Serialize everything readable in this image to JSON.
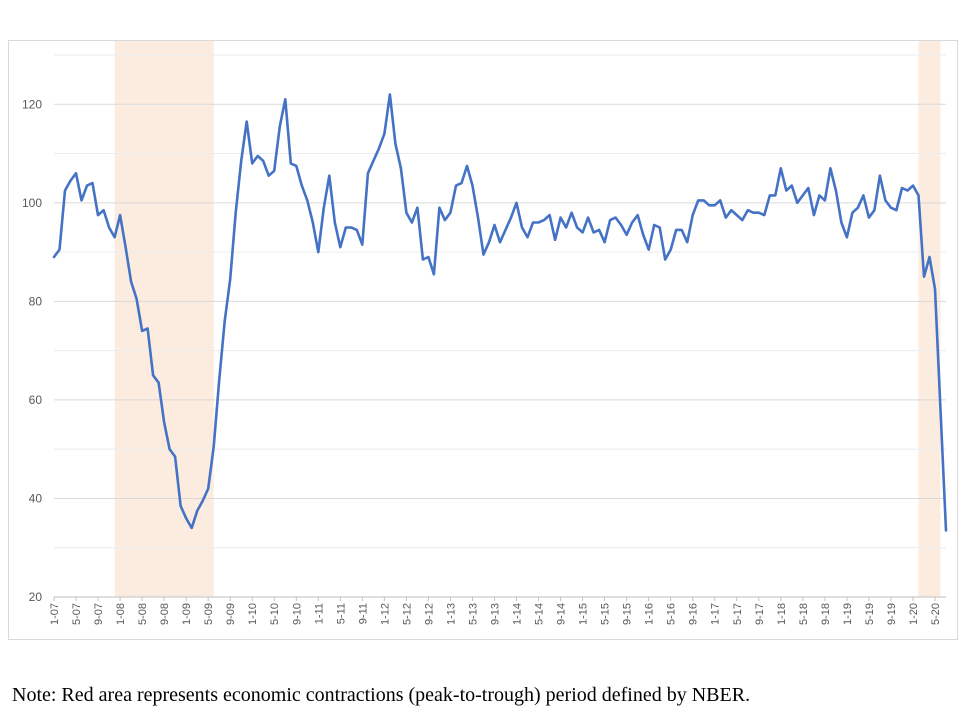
{
  "chart_data": {
    "type": "line",
    "title": "",
    "xlabel": "",
    "ylabel": "",
    "ylim": [
      20,
      130
    ],
    "yticks": [
      20,
      40,
      60,
      80,
      100,
      120
    ],
    "grid": true,
    "legend": "none",
    "line_color": "#4472c4",
    "highlight_color": "#fbe5d6",
    "x_tick_labels": [
      "1-07",
      "5-07",
      "9-07",
      "1-08",
      "5-08",
      "9-08",
      "1-09",
      "5-09",
      "9-09",
      "1-10",
      "5-10",
      "9-10",
      "1-11",
      "5-11",
      "9-11",
      "1-12",
      "5-12",
      "9-12",
      "1-13",
      "5-13",
      "9-13",
      "1-14",
      "5-14",
      "9-14",
      "1-15",
      "5-15",
      "9-15",
      "1-16",
      "5-16",
      "9-16",
      "1-17",
      "5-17",
      "9-17",
      "1-18",
      "5-18",
      "9-18",
      "1-19",
      "5-19",
      "9-19",
      "1-20",
      "5-20"
    ],
    "recession_periods": [
      {
        "start": "2007-12",
        "end": "2009-06"
      },
      {
        "start": "2020-02",
        "end": "2020-06"
      }
    ],
    "x": [
      "2007-01",
      "2007-02",
      "2007-03",
      "2007-04",
      "2007-05",
      "2007-06",
      "2007-07",
      "2007-08",
      "2007-09",
      "2007-10",
      "2007-11",
      "2007-12",
      "2008-01",
      "2008-02",
      "2008-03",
      "2008-04",
      "2008-05",
      "2008-06",
      "2008-07",
      "2008-08",
      "2008-09",
      "2008-10",
      "2008-11",
      "2008-12",
      "2009-01",
      "2009-02",
      "2009-03",
      "2009-04",
      "2009-05",
      "2009-06",
      "2009-07",
      "2009-08",
      "2009-09",
      "2009-10",
      "2009-11",
      "2009-12",
      "2010-01",
      "2010-02",
      "2010-03",
      "2010-04",
      "2010-05",
      "2010-06",
      "2010-07",
      "2010-08",
      "2010-09",
      "2010-10",
      "2010-11",
      "2010-12",
      "2011-01",
      "2011-02",
      "2011-03",
      "2011-04",
      "2011-05",
      "2011-06",
      "2011-07",
      "2011-08",
      "2011-09",
      "2011-10",
      "2011-11",
      "2011-12",
      "2012-01",
      "2012-02",
      "2012-03",
      "2012-04",
      "2012-05",
      "2012-06",
      "2012-07",
      "2012-08",
      "2012-09",
      "2012-10",
      "2012-11",
      "2012-12",
      "2013-01",
      "2013-02",
      "2013-03",
      "2013-04",
      "2013-05",
      "2013-06",
      "2013-07",
      "2013-08",
      "2013-09",
      "2013-10",
      "2013-11",
      "2013-12",
      "2014-01",
      "2014-02",
      "2014-03",
      "2014-04",
      "2014-05",
      "2014-06",
      "2014-07",
      "2014-08",
      "2014-09",
      "2014-10",
      "2014-11",
      "2014-12",
      "2015-01",
      "2015-02",
      "2015-03",
      "2015-04",
      "2015-05",
      "2015-06",
      "2015-07",
      "2015-08",
      "2015-09",
      "2015-10",
      "2015-11",
      "2015-12",
      "2016-01",
      "2016-02",
      "2016-03",
      "2016-04",
      "2016-05",
      "2016-06",
      "2016-07",
      "2016-08",
      "2016-09",
      "2016-10",
      "2016-11",
      "2016-12",
      "2017-01",
      "2017-02",
      "2017-03",
      "2017-04",
      "2017-05",
      "2017-06",
      "2017-07",
      "2017-08",
      "2017-09",
      "2017-10",
      "2017-11",
      "2017-12",
      "2018-01",
      "2018-02",
      "2018-03",
      "2018-04",
      "2018-05",
      "2018-06",
      "2018-07",
      "2018-08",
      "2018-09",
      "2018-10",
      "2018-11",
      "2018-12",
      "2019-01",
      "2019-02",
      "2019-03",
      "2019-04",
      "2019-05",
      "2019-06",
      "2019-07",
      "2019-08",
      "2019-09",
      "2019-10",
      "2019-11",
      "2019-12",
      "2020-01",
      "2020-02",
      "2020-03",
      "2020-04",
      "2020-05",
      "2020-06",
      "2020-07"
    ],
    "series": [
      {
        "values": [
          89,
          90.5,
          102.5,
          104.5,
          106,
          100.5,
          103.5,
          104,
          97.5,
          98.5,
          95,
          93,
          97.5,
          91,
          84,
          80.5,
          74,
          74.5,
          65,
          63.5,
          55.5,
          50,
          48.5,
          38.5,
          36,
          34,
          37.5,
          39.5,
          42,
          50.5,
          64,
          76,
          84.5,
          98,
          108.5,
          116.5,
          108,
          109.5,
          108.5,
          105.5,
          106.5,
          115.5,
          121,
          108,
          107.5,
          103.5,
          100.5,
          96,
          90,
          99,
          105.5,
          96,
          91,
          95,
          95,
          94.5,
          91.5,
          106,
          108.5,
          111,
          114,
          122,
          112,
          107,
          98,
          96,
          99,
          88.5,
          89,
          85.5,
          99,
          96.5,
          98,
          103.5,
          104,
          107.5,
          103.5,
          97,
          89.5,
          92,
          95.5,
          92,
          94.5,
          97,
          100,
          95,
          93,
          96,
          96,
          96.5,
          97.5,
          92.5,
          97,
          95,
          98,
          95,
          94,
          97,
          94,
          94.5,
          92,
          96.5,
          97,
          95.5,
          93.5,
          96,
          97.5,
          93.5,
          90.5,
          95.5,
          95,
          88.5,
          90.5,
          94.5,
          94.5,
          92,
          97.5,
          100.5,
          100.5,
          99.5,
          99.5,
          100.5,
          97,
          98.5,
          97.5,
          96.5,
          98.5,
          98,
          98,
          97.5,
          101.5,
          101.5,
          107,
          102.5,
          103.5,
          100,
          101.5,
          103,
          97.5,
          101.5,
          100.5,
          107,
          102.5,
          96,
          93,
          98,
          99,
          101.5,
          97,
          98.5,
          105.5,
          100.5,
          99,
          98.5,
          103,
          102.5,
          103.5,
          101.5,
          85,
          89,
          82.5,
          58,
          33.5
        ]
      }
    ]
  },
  "note": "Note: Red area represents economic contractions (peak-to-trough) period defined by NBER."
}
